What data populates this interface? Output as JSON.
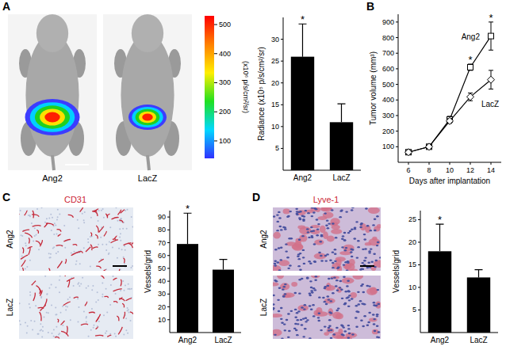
{
  "panels": [
    {
      "label": "A",
      "images": [
        {
          "label": "Ang2"
        },
        {
          "label": "LacZ"
        }
      ],
      "colorbar": {
        "label": "(x10⁶ p/s/cm²/sr)",
        "range": [
          40,
          530
        ],
        "ticks": [
          100,
          200,
          300,
          400,
          500
        ]
      }
    },
    {
      "label": "B"
    },
    {
      "label": "C",
      "stain": "CD31",
      "images": [
        {
          "label": "Ang2"
        },
        {
          "label": "LacZ"
        }
      ]
    },
    {
      "label": "D",
      "stain": "Lyve-1",
      "images": [
        {
          "label": "Ang2"
        },
        {
          "label": "LacZ"
        }
      ]
    }
  ],
  "chart_data": [
    {
      "type": "bar",
      "y_label": "Radiance (x10⁵ p/s/cm²/sr)",
      "categories": [
        "Ang2",
        "LacZ"
      ],
      "values": [
        26,
        11
      ],
      "errors": [
        7.5,
        4.2
      ],
      "color": "#000000",
      "ylim": [
        0,
        35
      ],
      "yticks": [
        5,
        10,
        15,
        20,
        25,
        30
      ],
      "annotations": [
        {
          "text": "*",
          "category": "Ang2"
        }
      ]
    },
    {
      "type": "line",
      "x_label": "Days after implantation",
      "y_label": "Tumor volume (mm³)",
      "x": [
        6,
        8,
        10,
        12,
        14
      ],
      "series": [
        {
          "name": "Ang2",
          "color": "#000000",
          "marker": "square",
          "values": [
            65,
            100,
            275,
            610,
            810
          ],
          "errors": [
            8,
            10,
            20,
            20,
            90
          ]
        },
        {
          "name": "LacZ",
          "color": "#000000",
          "marker": "diamond",
          "values": [
            65,
            100,
            265,
            420,
            530
          ],
          "errors": [
            8,
            10,
            15,
            25,
            60
          ]
        }
      ],
      "xlim": [
        5,
        15
      ],
      "ylim": [
        0,
        950
      ],
      "xticks": [
        6,
        8,
        10,
        12,
        14
      ],
      "yticks": [
        100,
        200,
        300,
        400,
        500,
        600,
        700,
        800,
        900
      ],
      "annotations": [
        {
          "text": "*",
          "x": 12
        },
        {
          "text": "*",
          "x": 14
        }
      ]
    },
    {
      "type": "bar",
      "y_label": "Vessels/grid",
      "categories": [
        "Ang2",
        "LacZ"
      ],
      "values": [
        69,
        49
      ],
      "errors": [
        24,
        8
      ],
      "color": "#000000",
      "ylim": [
        0,
        95
      ],
      "yticks": [
        10,
        20,
        30,
        40,
        50,
        60,
        70,
        80,
        90
      ],
      "annotations": [
        {
          "text": "*",
          "category": "Ang2"
        }
      ]
    },
    {
      "type": "bar",
      "y_label": "Vessels/grid",
      "categories": [
        "Ang2",
        "LacZ"
      ],
      "values": [
        18,
        12.2
      ],
      "errors": [
        6,
        1.7
      ],
      "color": "#000000",
      "ylim": [
        0,
        27
      ],
      "yticks": [
        5,
        10,
        15,
        20,
        25
      ],
      "annotations": [
        {
          "text": "*",
          "category": "Ang2"
        }
      ]
    }
  ]
}
